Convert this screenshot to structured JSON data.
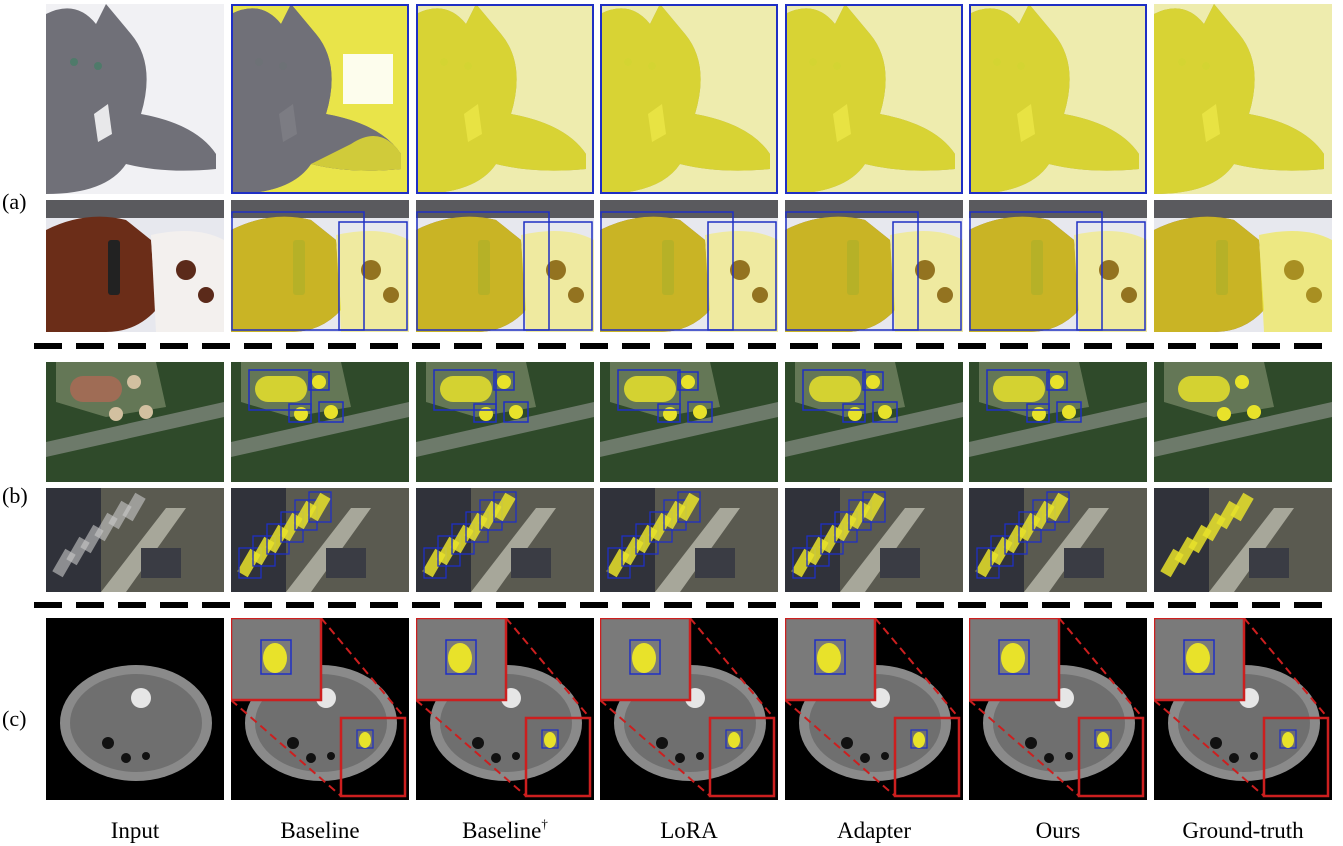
{
  "row_labels": [
    "(a)",
    "(b)",
    "(c)"
  ],
  "columns": [
    "Input",
    "Baseline",
    "Baseline",
    "LoRA",
    "Adapter",
    "Ours",
    "Ground-truth"
  ],
  "dagger": "†",
  "colors": {
    "mask": "#e8e22a",
    "box": "#1f2fc4",
    "zoom": "#cc1f1f",
    "divider": "#000000"
  }
}
